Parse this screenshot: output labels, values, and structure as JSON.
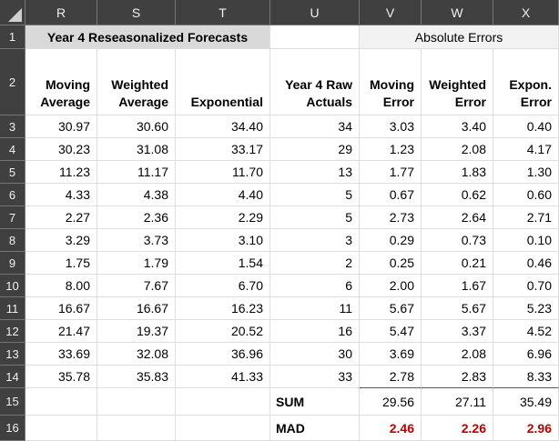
{
  "sheet": {
    "column_headers": [
      "R",
      "S",
      "T",
      "U",
      "V",
      "W",
      "X"
    ],
    "row1": {
      "num": "1",
      "title": "Year 4 Reseasonalized Forecasts",
      "absolute_errors_label": "Absolute Errors"
    },
    "row2": {
      "num": "2",
      "headers": [
        "Moving\nAverage",
        "Weighted\nAverage",
        "Exponential",
        "Year 4 Raw\nActuals",
        "Moving\nError",
        "Weighted\nError",
        "Expon.\nError"
      ]
    },
    "data_rows": [
      {
        "num": "3",
        "cells": [
          "30.97",
          "30.60",
          "34.40",
          "34",
          "3.03",
          "3.40",
          "0.40"
        ]
      },
      {
        "num": "4",
        "cells": [
          "30.23",
          "31.08",
          "33.17",
          "29",
          "1.23",
          "2.08",
          "4.17"
        ]
      },
      {
        "num": "5",
        "cells": [
          "11.23",
          "11.17",
          "11.70",
          "13",
          "1.77",
          "1.83",
          "1.30"
        ]
      },
      {
        "num": "6",
        "cells": [
          "4.33",
          "4.38",
          "4.40",
          "5",
          "0.67",
          "0.62",
          "0.60"
        ]
      },
      {
        "num": "7",
        "cells": [
          "2.27",
          "2.36",
          "2.29",
          "5",
          "2.73",
          "2.64",
          "2.71"
        ]
      },
      {
        "num": "8",
        "cells": [
          "3.29",
          "3.73",
          "3.10",
          "3",
          "0.29",
          "0.73",
          "0.10"
        ]
      },
      {
        "num": "9",
        "cells": [
          "1.75",
          "1.79",
          "1.54",
          "2",
          "0.25",
          "0.21",
          "0.46"
        ]
      },
      {
        "num": "10",
        "cells": [
          "8.00",
          "7.67",
          "6.70",
          "6",
          "2.00",
          "1.67",
          "0.70"
        ]
      },
      {
        "num": "11",
        "cells": [
          "16.67",
          "16.67",
          "16.23",
          "11",
          "5.67",
          "5.67",
          "5.23"
        ]
      },
      {
        "num": "12",
        "cells": [
          "21.47",
          "19.37",
          "20.52",
          "16",
          "5.47",
          "3.37",
          "4.52"
        ]
      },
      {
        "num": "13",
        "cells": [
          "33.69",
          "32.08",
          "36.96",
          "30",
          "3.69",
          "2.08",
          "6.96"
        ]
      },
      {
        "num": "14",
        "cells": [
          "35.78",
          "35.83",
          "41.33",
          "33",
          "2.78",
          "2.83",
          "8.33"
        ]
      }
    ],
    "summary_rows": [
      {
        "num": "15",
        "label": "SUM",
        "values": [
          "29.56",
          "27.11",
          "35.49"
        ],
        "style": "sum"
      },
      {
        "num": "16",
        "label": "MAD",
        "values": [
          "2.46",
          "2.26",
          "2.96"
        ],
        "style": "mad"
      }
    ]
  },
  "colors": {
    "header_bg": "#404040",
    "header_text": "#f0f0f0",
    "header_separator": "#757575",
    "title_fill": "#d9d9d9",
    "absolute_errors_fill": "#f2f2f2",
    "gridline": "#dedede",
    "sum_line": "#595959",
    "mad_value_color": "#c00000"
  }
}
